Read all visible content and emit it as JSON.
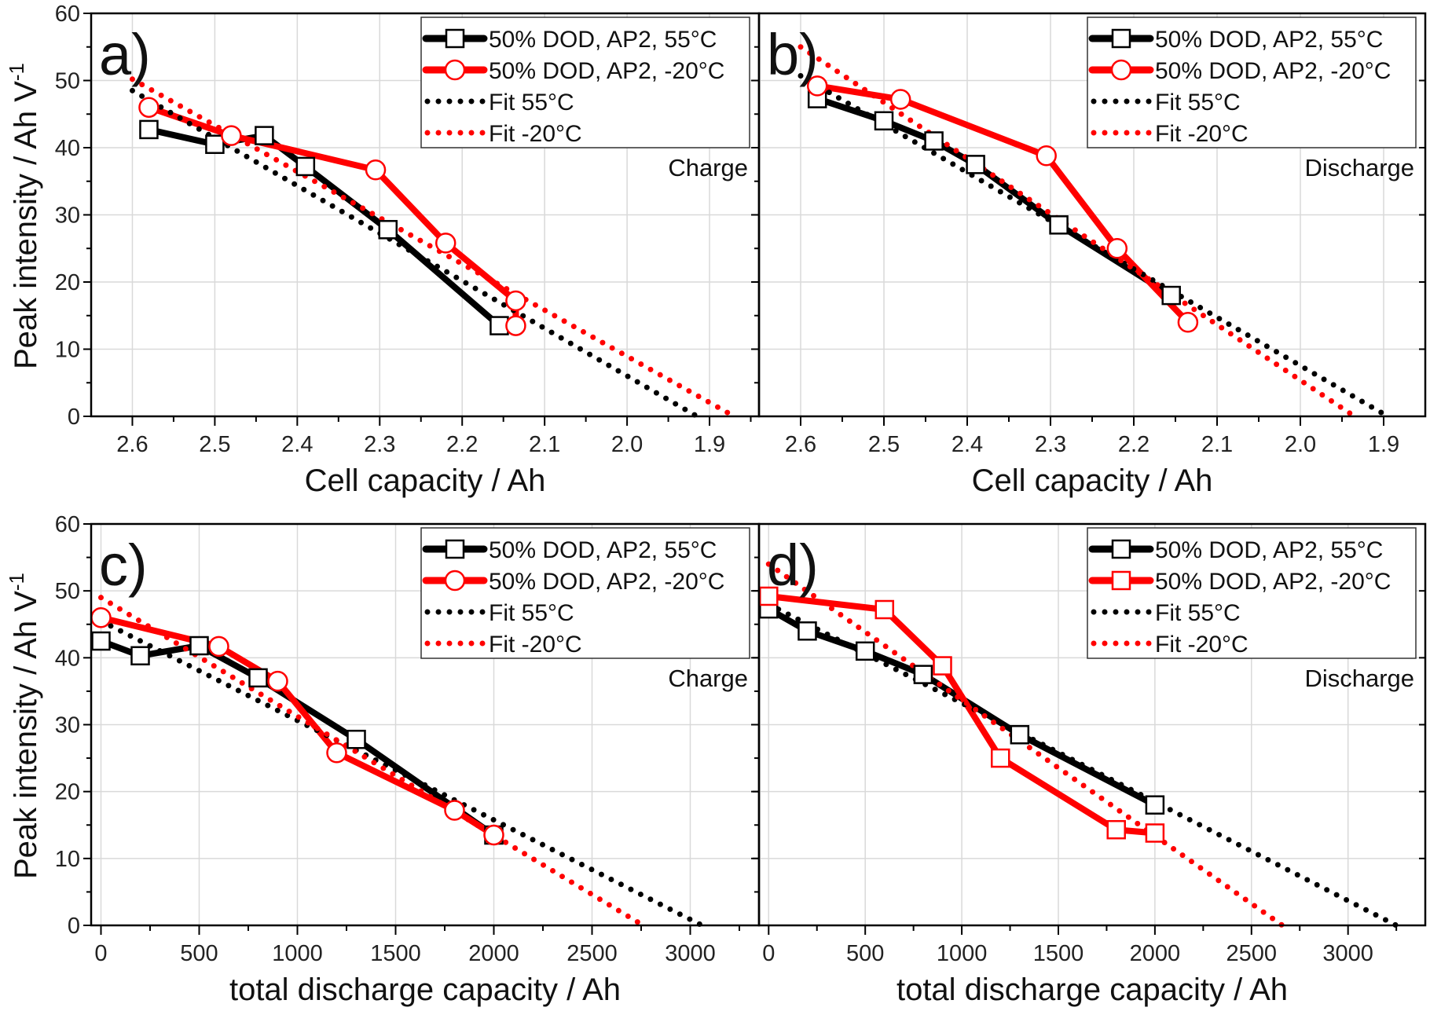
{
  "ylabel": "Peak intensity / Ah V",
  "ylabel_sup": "-1",
  "colors": {
    "black": "#000000",
    "red": "#ff0000",
    "grid": "#d9d9d9"
  },
  "chart_data": [
    {
      "type": "line",
      "panel": "a)",
      "note": "Charge",
      "xlabel": "Cell capacity / Ah",
      "xlim": [
        2.65,
        1.84
      ],
      "ylim": [
        0,
        60
      ],
      "xticks": [
        2.6,
        2.5,
        2.4,
        2.3,
        2.2,
        2.1,
        2.0,
        1.9
      ],
      "xtick_labels": [
        "2.6",
        "2.5",
        "2.4",
        "2.3",
        "2.2",
        "2.1",
        "2.0",
        "1.9"
      ],
      "yticks": [
        0,
        10,
        20,
        30,
        40,
        50,
        60
      ],
      "grid": true,
      "legend": "top-right",
      "series": [
        {
          "name": "50% DOD, AP2, 55°C",
          "color": "#000000",
          "style": "line",
          "marker": "square",
          "x": [
            2.58,
            2.5,
            2.44,
            2.39,
            2.29,
            2.155
          ],
          "y": [
            42.7,
            40.5,
            41.8,
            37.2,
            27.8,
            13.5
          ]
        },
        {
          "name": "50% DOD, AP2, -20°C",
          "color": "#ff0000",
          "style": "line",
          "marker": "circle",
          "x": [
            2.58,
            2.48,
            2.305,
            2.22,
            2.135,
            2.135
          ],
          "y": [
            46.0,
            41.8,
            36.7,
            25.8,
            17.2,
            13.5
          ]
        },
        {
          "name": "Fit 55°C",
          "color": "#000000",
          "style": "dot",
          "x": [
            2.6,
            1.915
          ],
          "y": [
            48.5,
            0
          ]
        },
        {
          "name": "Fit -20°C",
          "color": "#ff0000",
          "style": "dot",
          "x": [
            2.6,
            1.87
          ],
          "y": [
            50.2,
            0
          ]
        }
      ]
    },
    {
      "type": "line",
      "panel": "b)",
      "note": "Discharge",
      "xlabel": "Cell capacity / Ah",
      "xlim": [
        2.65,
        1.85
      ],
      "ylim": [
        0,
        60
      ],
      "xticks": [
        2.6,
        2.5,
        2.4,
        2.3,
        2.2,
        2.1,
        2.0,
        1.9
      ],
      "xtick_labels": [
        "2.6",
        "2.5",
        "2.4",
        "2.3",
        "2.2",
        "2.1",
        "2.0",
        "1.9"
      ],
      "yticks": [
        0,
        10,
        20,
        30,
        40,
        50,
        60
      ],
      "grid": true,
      "legend": "top-right",
      "series": [
        {
          "name": "50% DOD, AP2, 55°C",
          "color": "#000000",
          "style": "line",
          "marker": "square",
          "x": [
            2.58,
            2.5,
            2.44,
            2.39,
            2.29,
            2.155
          ],
          "y": [
            47.3,
            44.0,
            41.0,
            37.5,
            28.5,
            18.0
          ]
        },
        {
          "name": "50% DOD, AP2, -20°C",
          "color": "#ff0000",
          "style": "line",
          "marker": "circle",
          "x": [
            2.58,
            2.48,
            2.305,
            2.22,
            2.135
          ],
          "y": [
            49.2,
            47.2,
            38.8,
            25.0,
            14.0
          ]
        },
        {
          "name": "Fit 55°C",
          "color": "#000000",
          "style": "dot",
          "x": [
            2.6,
            1.895
          ],
          "y": [
            50.7,
            0
          ]
        },
        {
          "name": "Fit -20°C",
          "color": "#ff0000",
          "style": "dot",
          "x": [
            2.6,
            1.935
          ],
          "y": [
            55.0,
            0
          ]
        }
      ]
    },
    {
      "type": "line",
      "panel": "c)",
      "note": "Charge",
      "xlabel": "total discharge capacity / Ah",
      "xlim": [
        -50,
        3350
      ],
      "ylim": [
        0,
        60
      ],
      "xticks": [
        0,
        500,
        1000,
        1500,
        2000,
        2500,
        3000
      ],
      "xtick_labels": [
        "0",
        "500",
        "1000",
        "1500",
        "2000",
        "2500",
        "3000"
      ],
      "yticks": [
        0,
        10,
        20,
        30,
        40,
        50,
        60
      ],
      "grid": true,
      "legend": "top-right",
      "series": [
        {
          "name": "50% DOD, AP2, 55°C",
          "color": "#000000",
          "style": "line",
          "marker": "square",
          "x": [
            0,
            200,
            500,
            800,
            1300,
            2000
          ],
          "y": [
            42.5,
            40.3,
            41.8,
            37.0,
            27.8,
            13.5
          ]
        },
        {
          "name": "50% DOD, AP2, -20°C",
          "color": "#ff0000",
          "style": "line",
          "marker": "circle",
          "x": [
            0,
            600,
            900,
            1200,
            1800,
            2000
          ],
          "y": [
            46.0,
            41.7,
            36.5,
            25.8,
            17.2,
            13.5
          ]
        },
        {
          "name": "Fit 55°C",
          "color": "#000000",
          "style": "dot",
          "x": [
            0,
            3060
          ],
          "y": [
            45.5,
            0
          ]
        },
        {
          "name": "Fit -20°C",
          "color": "#ff0000",
          "style": "dot",
          "x": [
            0,
            2760
          ],
          "y": [
            49.0,
            0
          ]
        }
      ]
    },
    {
      "type": "line",
      "panel": "d)",
      "note": "Discharge",
      "xlabel": "total discharge capacity / Ah",
      "xlim": [
        -50,
        3400
      ],
      "ylim": [
        0,
        60
      ],
      "xticks": [
        0,
        500,
        1000,
        1500,
        2000,
        2500,
        3000
      ],
      "xtick_labels": [
        "0",
        "500",
        "1000",
        "1500",
        "2000",
        "2500",
        "3000"
      ],
      "yticks": [
        0,
        10,
        20,
        30,
        40,
        50,
        60
      ],
      "grid": true,
      "legend": "top-right",
      "series": [
        {
          "name": "50% DOD, AP2, 55°C",
          "color": "#000000",
          "style": "line",
          "marker": "square",
          "x": [
            0,
            200,
            500,
            800,
            1300,
            2000
          ],
          "y": [
            47.3,
            44.0,
            41.0,
            37.5,
            28.5,
            18.0
          ]
        },
        {
          "name": "50% DOD, AP2, -20°C",
          "color": "#ff0000",
          "style": "line",
          "marker": "square",
          "x": [
            0,
            600,
            900,
            1200,
            1800,
            2000
          ],
          "y": [
            49.2,
            47.2,
            38.8,
            25.0,
            14.3,
            13.8
          ]
        },
        {
          "name": "Fit 55°C",
          "color": "#000000",
          "style": "dot",
          "x": [
            0,
            3250
          ],
          "y": [
            48.0,
            0
          ]
        },
        {
          "name": "Fit -20°C",
          "color": "#ff0000",
          "style": "dot",
          "x": [
            0,
            2660
          ],
          "y": [
            54.0,
            0
          ]
        }
      ]
    }
  ]
}
